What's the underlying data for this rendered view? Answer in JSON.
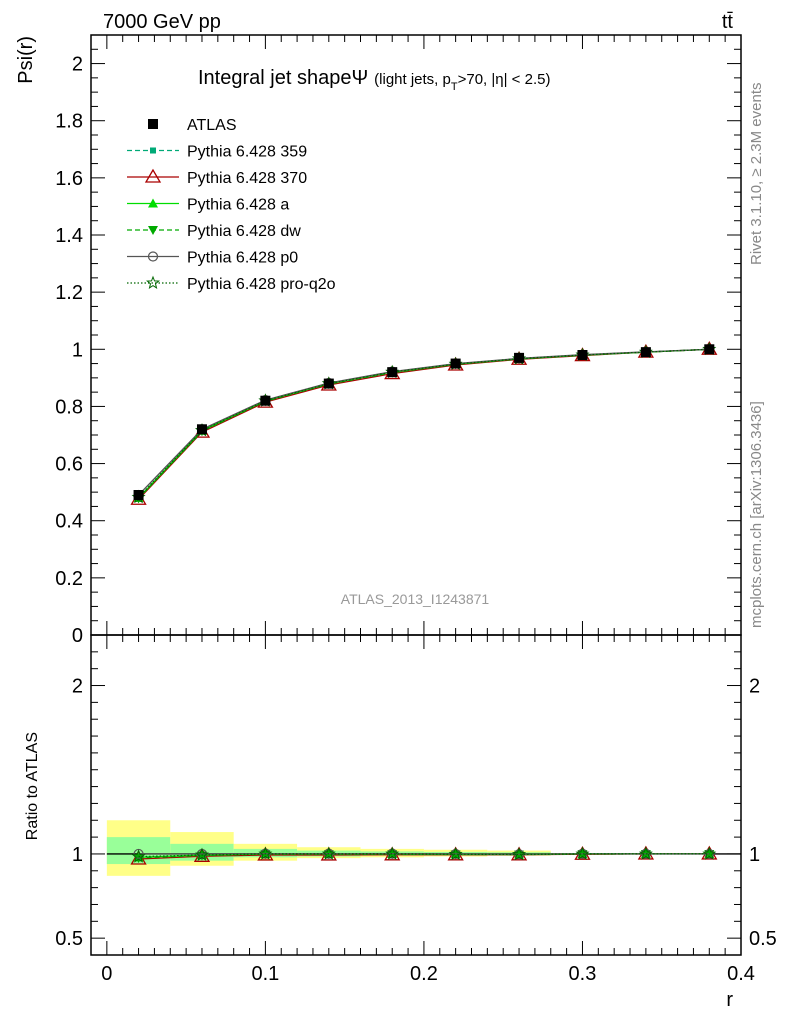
{
  "header": {
    "energy_label": "7000 GeV pp",
    "process_label": "tt̄",
    "side_label_top": "Rivet 3.1.10, ≥ 2.3M events",
    "side_label_bottom": "mcplots.cern.ch [arXiv:1306.3436]",
    "analysis_id": "ATLAS_2013_I1243871"
  },
  "colors": {
    "atlas": "#000000",
    "p359": "#00aa77",
    "p370": "#aa0000",
    "pa": "#00dd00",
    "pdw": "#00aa00",
    "pp0": "#555555",
    "pq2o": "#006600",
    "band_inner": "#99ff99",
    "band_outer": "#ffff88"
  },
  "chart_data": [
    {
      "type": "line",
      "title_main": "Integral jet shape",
      "title_symbol": "Ψ",
      "title_sub": "(light jets, p",
      "title_sub_index": "T",
      "title_sub_rest": ">70, |η| < 2.5)",
      "ylabel": "Psi(r)",
      "xlabel": "",
      "xlim": [
        -0.01,
        0.4
      ],
      "ylim": [
        0,
        2.1
      ],
      "y_ticks": [
        "0",
        "0.2",
        "0.4",
        "0.6",
        "0.8",
        "1",
        "1.2",
        "1.4",
        "1.6",
        "1.8",
        "2"
      ],
      "x": [
        0.02,
        0.06,
        0.1,
        0.14,
        0.18,
        0.22,
        0.26,
        0.3,
        0.34,
        0.38
      ],
      "legend_position": "top-left",
      "series": [
        {
          "name": "ATLAS",
          "values": [
            0.49,
            0.72,
            0.82,
            0.88,
            0.92,
            0.95,
            0.97,
            0.98,
            0.99,
            1.0
          ]
        },
        {
          "name": "Pythia 6.428 359",
          "values": [
            0.48,
            0.715,
            0.82,
            0.88,
            0.92,
            0.948,
            0.967,
            0.98,
            0.99,
            1.0
          ]
        },
        {
          "name": "Pythia 6.428 370",
          "values": [
            0.475,
            0.71,
            0.815,
            0.875,
            0.915,
            0.945,
            0.965,
            0.978,
            0.99,
            1.0
          ]
        },
        {
          "name": "Pythia 6.428 a",
          "values": [
            0.48,
            0.715,
            0.82,
            0.88,
            0.92,
            0.948,
            0.967,
            0.98,
            0.99,
            1.0
          ]
        },
        {
          "name": "Pythia 6.428 dw",
          "values": [
            0.478,
            0.713,
            0.818,
            0.878,
            0.918,
            0.947,
            0.966,
            0.979,
            0.99,
            1.0
          ]
        },
        {
          "name": "Pythia 6.428 p0",
          "values": [
            0.49,
            0.72,
            0.822,
            0.882,
            0.922,
            0.95,
            0.968,
            0.981,
            0.991,
            1.0
          ]
        },
        {
          "name": "Pythia 6.428 pro-q2o",
          "values": [
            0.482,
            0.716,
            0.82,
            0.88,
            0.92,
            0.948,
            0.967,
            0.98,
            0.99,
            1.0
          ]
        }
      ]
    },
    {
      "type": "line",
      "ylabel": "Ratio to ATLAS",
      "xlabel": "r",
      "xlim": [
        -0.01,
        0.4
      ],
      "ylim": [
        0.4,
        2.3
      ],
      "y_ticks": [
        "0.5",
        "1",
        "2"
      ],
      "x_ticks": [
        "0",
        "0.1",
        "0.2",
        "0.3",
        "0.4"
      ],
      "x": [
        0.02,
        0.06,
        0.1,
        0.14,
        0.18,
        0.22,
        0.26,
        0.3,
        0.34,
        0.38
      ],
      "bins": [
        [
          0.0,
          0.04
        ],
        [
          0.04,
          0.08
        ],
        [
          0.08,
          0.12
        ],
        [
          0.12,
          0.16
        ],
        [
          0.16,
          0.2
        ],
        [
          0.2,
          0.24
        ],
        [
          0.24,
          0.28
        ],
        [
          0.28,
          0.32
        ],
        [
          0.32,
          0.36
        ],
        [
          0.36,
          0.4
        ]
      ],
      "band_inner": [
        [
          0.94,
          1.1
        ],
        [
          0.96,
          1.06
        ],
        [
          0.98,
          1.03
        ],
        [
          0.985,
          1.02
        ],
        [
          0.99,
          1.015
        ],
        [
          0.99,
          1.012
        ],
        [
          0.992,
          1.01
        ],
        [
          0.995,
          1.005
        ],
        [
          0.997,
          1.003
        ],
        [
          0.999,
          1.001
        ]
      ],
      "band_outer": [
        [
          0.87,
          1.2
        ],
        [
          0.93,
          1.13
        ],
        [
          0.96,
          1.06
        ],
        [
          0.975,
          1.04
        ],
        [
          0.98,
          1.03
        ],
        [
          0.985,
          1.025
        ],
        [
          0.99,
          1.02
        ],
        [
          0.995,
          1.005
        ],
        [
          0.997,
          1.003
        ],
        [
          0.999,
          1.001
        ]
      ],
      "series": [
        {
          "name": "Pythia 6.428 359",
          "values": [
            0.98,
            0.993,
            1.0,
            1.0,
            1.0,
            0.998,
            0.997,
            1.0,
            1.0,
            1.0
          ]
        },
        {
          "name": "Pythia 6.428 370",
          "values": [
            0.97,
            0.986,
            0.994,
            0.994,
            0.995,
            0.995,
            0.995,
            0.998,
            1.0,
            1.0
          ]
        },
        {
          "name": "Pythia 6.428 a",
          "values": [
            0.98,
            0.993,
            1.0,
            1.0,
            1.0,
            0.998,
            0.997,
            1.0,
            1.0,
            1.0
          ]
        },
        {
          "name": "Pythia 6.428 dw",
          "values": [
            0.976,
            0.99,
            0.998,
            0.998,
            0.998,
            0.997,
            0.996,
            0.999,
            1.0,
            1.0
          ]
        },
        {
          "name": "Pythia 6.428 p0",
          "values": [
            1.0,
            1.0,
            1.002,
            1.002,
            1.002,
            1.0,
            0.998,
            1.001,
            1.001,
            1.0
          ]
        },
        {
          "name": "Pythia 6.428 pro-q2o",
          "values": [
            0.984,
            0.994,
            1.0,
            1.0,
            1.0,
            0.998,
            0.997,
            1.0,
            1.0,
            1.0
          ]
        }
      ]
    }
  ]
}
